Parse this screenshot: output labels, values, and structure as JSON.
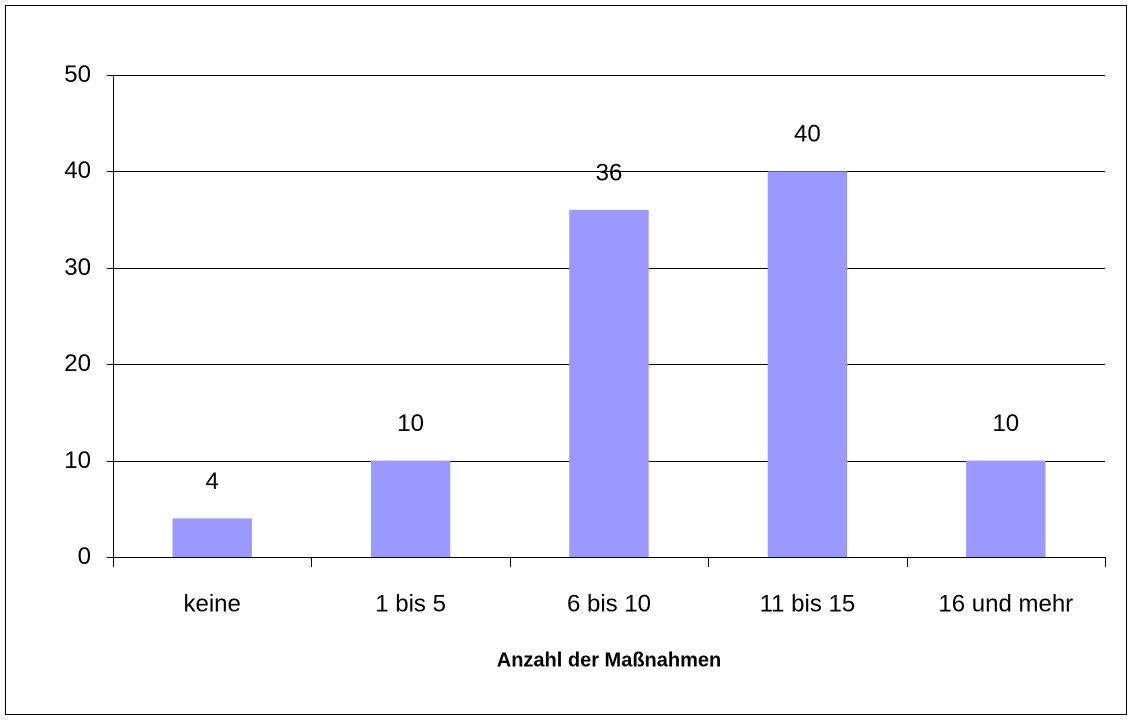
{
  "chart_data": {
    "type": "bar",
    "categories": [
      "keine",
      "1 bis 5",
      "6 bis 10",
      "11 bis 15",
      "16 und mehr"
    ],
    "values": [
      4,
      10,
      36,
      40,
      10
    ],
    "color": "#9999ff",
    "xlabel": "Anzahl der Maßnahmen",
    "ylim": [
      0,
      50
    ],
    "yticks": [
      0,
      10,
      20,
      30,
      40,
      50
    ],
    "grid": true
  }
}
